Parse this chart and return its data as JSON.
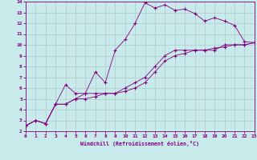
{
  "xlabel": "Windchill (Refroidissement éolien,°C)",
  "xlim": [
    0,
    23
  ],
  "ylim": [
    2,
    14
  ],
  "xticks": [
    0,
    1,
    2,
    3,
    4,
    5,
    6,
    7,
    8,
    9,
    10,
    11,
    12,
    13,
    14,
    15,
    16,
    17,
    18,
    19,
    20,
    21,
    22,
    23
  ],
  "yticks": [
    2,
    3,
    4,
    5,
    6,
    7,
    8,
    9,
    10,
    11,
    12,
    13,
    14
  ],
  "line_color": "#800080",
  "bg_color": "#c8eaea",
  "grid_color": "#b0c8c8",
  "line1_x": [
    0,
    1,
    2,
    3,
    4,
    5,
    6,
    7,
    8,
    9,
    10,
    11,
    12,
    13,
    14,
    15,
    16,
    17,
    18,
    19,
    20,
    21,
    22,
    23
  ],
  "line1_y": [
    2.5,
    3.0,
    2.7,
    4.5,
    6.3,
    5.5,
    5.5,
    7.5,
    6.5,
    9.5,
    10.5,
    12.0,
    13.9,
    13.4,
    13.7,
    13.2,
    13.3,
    12.9,
    12.2,
    12.5,
    12.2,
    11.8,
    10.3,
    10.2
  ],
  "line2_x": [
    0,
    1,
    2,
    3,
    4,
    5,
    6,
    7,
    8,
    9,
    10,
    11,
    12,
    13,
    14,
    15,
    16,
    17,
    18,
    19,
    20,
    21,
    22,
    23
  ],
  "line2_y": [
    2.5,
    3.0,
    2.7,
    4.5,
    4.5,
    5.0,
    5.5,
    5.5,
    5.5,
    5.5,
    6.0,
    6.5,
    7.0,
    8.0,
    9.0,
    9.5,
    9.5,
    9.5,
    9.5,
    9.5,
    10.0,
    10.0,
    10.0,
    10.2
  ],
  "line3_x": [
    0,
    1,
    2,
    3,
    4,
    5,
    6,
    7,
    8,
    9,
    10,
    11,
    12,
    13,
    14,
    15,
    16,
    17,
    18,
    19,
    20,
    21,
    22,
    23
  ],
  "line3_y": [
    2.5,
    3.0,
    2.7,
    4.5,
    4.5,
    5.0,
    5.0,
    5.2,
    5.5,
    5.5,
    5.7,
    6.0,
    6.5,
    7.5,
    8.5,
    9.0,
    9.2,
    9.5,
    9.5,
    9.7,
    9.8,
    10.0,
    10.0,
    10.2
  ],
  "tick_fontsize": 4.5,
  "xlabel_fontsize": 4.8
}
